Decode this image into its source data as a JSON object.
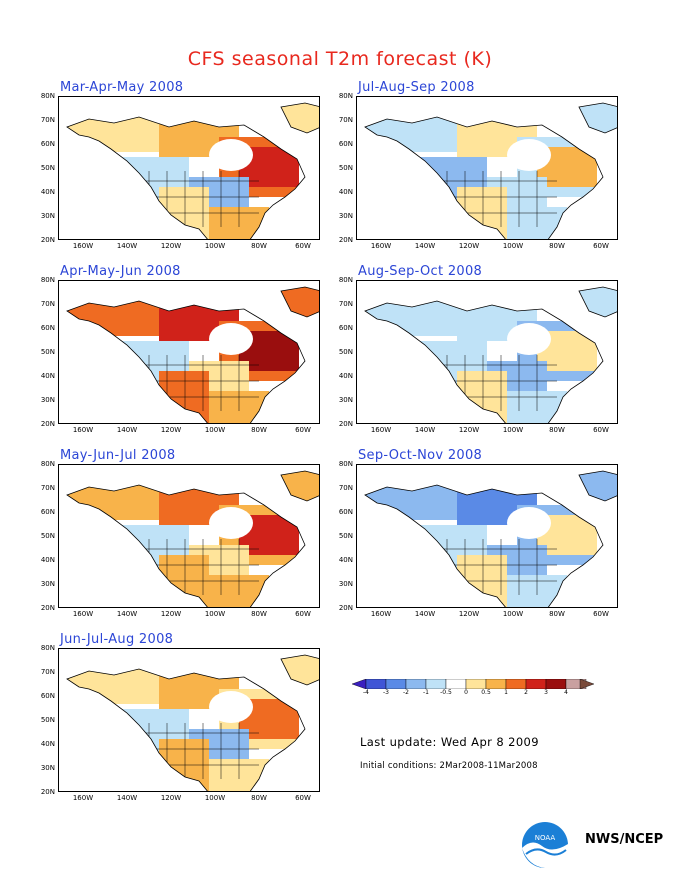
{
  "title": "CFS seasonal T2m forecast (K)",
  "panels": [
    {
      "label": "Mar-Apr-May 2008",
      "palette": "a"
    },
    {
      "label": "Jul-Aug-Sep 2008",
      "palette": "b"
    },
    {
      "label": "Apr-May-Jun 2008",
      "palette": "c"
    },
    {
      "label": "Aug-Sep-Oct 2008",
      "palette": "d"
    },
    {
      "label": "May-Jun-Jul 2008",
      "palette": "e"
    },
    {
      "label": "Sep-Oct-Nov 2008",
      "palette": "f"
    },
    {
      "label": "Jun-Jul-Aug 2008",
      "palette": "g"
    }
  ],
  "lat_ticks": [
    "80N",
    "70N",
    "60N",
    "50N",
    "40N",
    "30N",
    "20N"
  ],
  "lon_ticks": [
    "160W",
    "140W",
    "120W",
    "100W",
    "80W",
    "60W"
  ],
  "colorbar": {
    "labels": [
      "-4",
      "-3",
      "-2",
      "-1",
      "-0.5",
      "0",
      "0.5",
      "1",
      "2",
      "3",
      "4"
    ],
    "colors": [
      "#3a1fbf",
      "#3f55d6",
      "#5a8ae6",
      "#8cb9ef",
      "#bfe2f7",
      "#ffffff",
      "#ffe49a",
      "#f8b34a",
      "#ef6b22",
      "#d0221a",
      "#9a0e0e",
      "#c9a0a0",
      "#7a4a3a"
    ]
  },
  "last_update": "Last update: Wed Apr 8 2009",
  "initial_conditions": "Initial conditions: 2Mar2008-11Mar2008",
  "credit": "NWS/NCEP",
  "logo_text": "NOAA"
}
